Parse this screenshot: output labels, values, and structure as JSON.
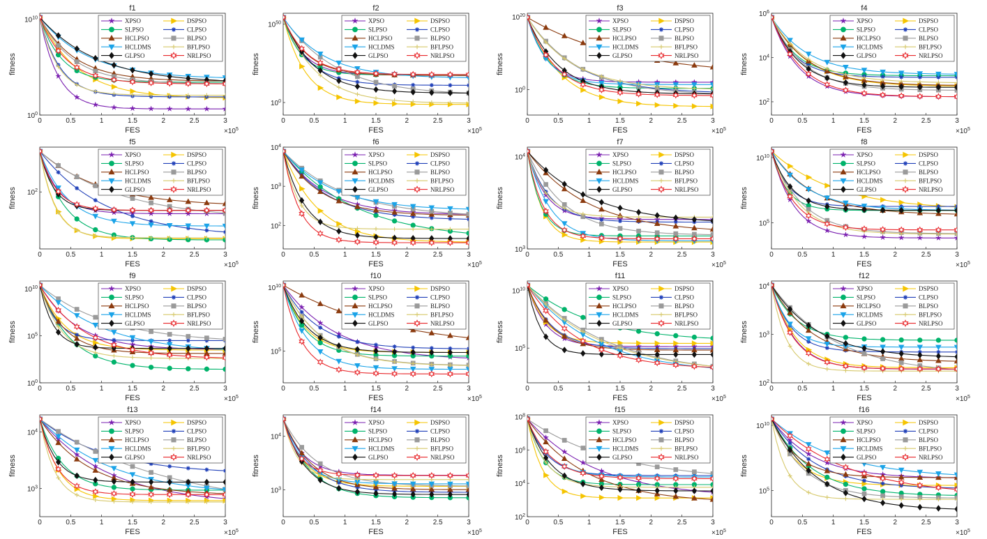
{
  "chart_data": {
    "type": "line",
    "panels": [
      {
        "title": "f1",
        "ylabel": "fitness",
        "xlabel": "FES",
        "x_multiplier": "×10^5",
        "xlim": [
          0,
          3
        ],
        "yscale": "log",
        "ylim_exp": [
          0,
          10.6
        ],
        "y_ticks": [
          {
            "exp": 0,
            "label": "10^0"
          },
          {
            "exp": 10,
            "label": "10^10"
          }
        ]
      },
      {
        "title": "f2",
        "ylabel": "fitness",
        "xlabel": "FES",
        "x_multiplier": "×10^5",
        "xlim": [
          0,
          3
        ],
        "yscale": "log",
        "ylim_exp": [
          -8,
          57
        ],
        "y_ticks": [
          {
            "exp": 0,
            "label": "10^0"
          },
          {
            "exp": 50,
            "label": "10^50"
          }
        ]
      },
      {
        "title": "f3",
        "ylabel": "fitness",
        "xlabel": "FES",
        "x_multiplier": "×10^5",
        "xlim": [
          0,
          3
        ],
        "yscale": "log",
        "ylim_exp": [
          -7,
          21
        ],
        "y_ticks": [
          {
            "exp": 0,
            "label": "10^0"
          },
          {
            "exp": 20,
            "label": "10^20"
          }
        ]
      },
      {
        "title": "f4",
        "ylabel": "fitness",
        "xlabel": "FES",
        "x_multiplier": "×10^5",
        "xlim": [
          0,
          3
        ],
        "yscale": "log",
        "ylim_exp": [
          1.4,
          6
        ],
        "y_ticks": [
          {
            "exp": 2,
            "label": "10^2"
          },
          {
            "exp": 4,
            "label": "10^4"
          },
          {
            "exp": 6,
            "label": "10^6"
          }
        ]
      },
      {
        "title": "f5",
        "ylabel": "fitness",
        "xlabel": "FES",
        "x_multiplier": "×10^5",
        "xlim": [
          0,
          3
        ],
        "yscale": "log",
        "ylim_exp": [
          0.6,
          3.1
        ],
        "y_ticks": [
          {
            "exp": 2,
            "label": "10^2"
          }
        ]
      },
      {
        "title": "f6",
        "ylabel": "fitness",
        "xlabel": "FES",
        "x_multiplier": "×10^5",
        "xlim": [
          0,
          3
        ],
        "yscale": "log",
        "ylim_exp": [
          1.4,
          4
        ],
        "y_ticks": [
          {
            "exp": 2,
            "label": "10^2"
          },
          {
            "exp": 3,
            "label": "10^3"
          },
          {
            "exp": 4,
            "label": "10^4"
          }
        ]
      },
      {
        "title": "f7",
        "ylabel": "fitness",
        "xlabel": "FES",
        "x_multiplier": "×10^5",
        "xlim": [
          0,
          3
        ],
        "yscale": "log",
        "ylim_exp": [
          3,
          4.1
        ],
        "y_ticks": [
          {
            "exp": 3,
            "label": "10^3"
          },
          {
            "exp": 4,
            "label": "10^4"
          }
        ]
      },
      {
        "title": "f8",
        "ylabel": "fitness",
        "xlabel": "FES",
        "x_multiplier": "×10^5",
        "xlim": [
          0,
          3
        ],
        "yscale": "log",
        "ylim_exp": [
          3,
          10.8
        ],
        "y_ticks": [
          {
            "exp": 5,
            "label": "10^5"
          },
          {
            "exp": 10,
            "label": "10^10"
          }
        ]
      },
      {
        "title": "f9",
        "ylabel": "fitness",
        "xlabel": "FES",
        "x_multiplier": "×10^5",
        "xlim": [
          0,
          3
        ],
        "yscale": "log",
        "ylim_exp": [
          0,
          10.8
        ],
        "y_ticks": [
          {
            "exp": 0,
            "label": "10^0"
          },
          {
            "exp": 5,
            "label": "10^5"
          },
          {
            "exp": 10,
            "label": "10^10"
          }
        ]
      },
      {
        "title": "f10",
        "ylabel": "fitness",
        "xlabel": "FES",
        "x_multiplier": "×10^5",
        "xlim": [
          0,
          3
        ],
        "yscale": "log",
        "ylim_exp": [
          2.5,
          10.5
        ],
        "y_ticks": [
          {
            "exp": 5,
            "label": "10^5"
          },
          {
            "exp": 10,
            "label": "10^10"
          }
        ]
      },
      {
        "title": "f11",
        "ylabel": "fitness",
        "xlabel": "FES",
        "x_multiplier": "×10^5",
        "xlim": [
          0,
          3
        ],
        "yscale": "log",
        "ylim_exp": [
          2,
          10.8
        ],
        "y_ticks": [
          {
            "exp": 5,
            "label": "10^5"
          },
          {
            "exp": 10,
            "label": "10^10"
          }
        ]
      },
      {
        "title": "f12",
        "ylabel": "fitness",
        "xlabel": "FES",
        "x_multiplier": "×10^5",
        "xlim": [
          0,
          3
        ],
        "yscale": "log",
        "ylim_exp": [
          2,
          4.1
        ],
        "y_ticks": [
          {
            "exp": 2,
            "label": "10^2"
          },
          {
            "exp": 3,
            "label": "10^3"
          },
          {
            "exp": 4,
            "label": "10^4"
          }
        ]
      },
      {
        "title": "f13",
        "ylabel": "fitness",
        "xlabel": "FES",
        "x_multiplier": "×10^5",
        "xlim": [
          0,
          3
        ],
        "yscale": "log",
        "ylim_exp": [
          2.5,
          4.3
        ],
        "y_ticks": [
          {
            "exp": 3,
            "label": "10^3"
          },
          {
            "exp": 4,
            "label": "10^4"
          }
        ]
      },
      {
        "title": "f14",
        "ylabel": "fitness",
        "xlabel": "FES",
        "x_multiplier": "×10^5",
        "xlim": [
          0,
          3
        ],
        "yscale": "log",
        "ylim_exp": [
          2.5,
          4.4
        ],
        "y_ticks": [
          {
            "exp": 3,
            "label": "10^3"
          },
          {
            "exp": 4,
            "label": "10^4"
          }
        ]
      },
      {
        "title": "f15",
        "ylabel": "fitness",
        "xlabel": "FES",
        "x_multiplier": "×10^5",
        "xlim": [
          0,
          3
        ],
        "yscale": "log",
        "ylim_exp": [
          2,
          8.1
        ],
        "y_ticks": [
          {
            "exp": 2,
            "label": "10^2"
          },
          {
            "exp": 4,
            "label": "10^4"
          },
          {
            "exp": 6,
            "label": "10^6"
          },
          {
            "exp": 8,
            "label": "10^8"
          }
        ]
      },
      {
        "title": "f16",
        "ylabel": "fitness",
        "xlabel": "FES",
        "x_multiplier": "×10^5",
        "xlim": [
          0,
          3
        ],
        "yscale": "log",
        "ylim_exp": [
          3,
          10.8
        ],
        "y_ticks": [
          {
            "exp": 5,
            "label": "10^5"
          },
          {
            "exp": 10,
            "label": "10^10"
          }
        ]
      }
    ],
    "x_ticks": [
      "0",
      "0.5",
      "1",
      "1.5",
      "2",
      "2.5",
      "3"
    ],
    "legend": {
      "placement": "top-right",
      "entries": [
        {
          "name": "XPSO",
          "color": "#7a1fb0",
          "marker": "star"
        },
        {
          "name": "DSPSO",
          "color": "#f5c400",
          "marker": "triangle-right"
        },
        {
          "name": "SLPSO",
          "color": "#00b36b",
          "marker": "circle"
        },
        {
          "name": "CLPSO",
          "color": "#1f3fb8",
          "marker": "asterisk"
        },
        {
          "name": "HCLPSO",
          "color": "#8b3a0e",
          "marker": "triangle-up"
        },
        {
          "name": "BLPSO",
          "color": "#9a9a9a",
          "marker": "square"
        },
        {
          "name": "HCLDMS",
          "color": "#1aa3e8",
          "marker": "triangle-down"
        },
        {
          "name": "BFLPSO",
          "color": "#d6c86a",
          "marker": "plus"
        },
        {
          "name": "GLPSO",
          "color": "#111111",
          "marker": "diamond"
        },
        {
          "name": "NRLPSO",
          "color": "#e8262a",
          "marker": "hexagram"
        }
      ]
    }
  }
}
